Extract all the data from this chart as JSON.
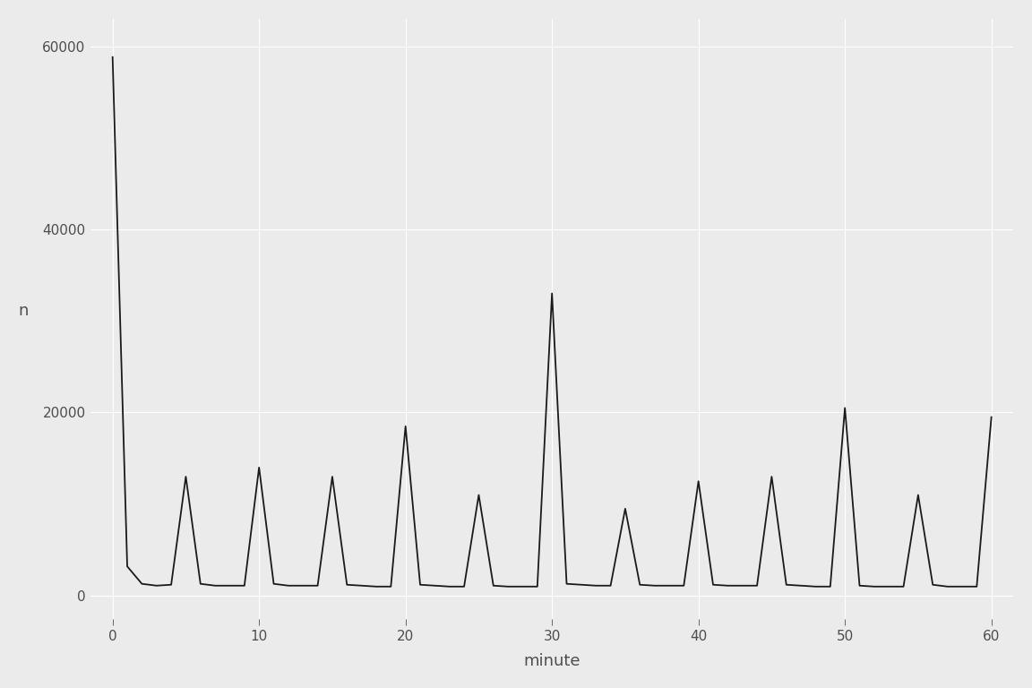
{
  "minutes": [
    0,
    1,
    2,
    3,
    4,
    5,
    6,
    7,
    8,
    9,
    10,
    11,
    12,
    13,
    14,
    15,
    16,
    17,
    18,
    19,
    20,
    21,
    22,
    23,
    24,
    25,
    26,
    27,
    28,
    29,
    30,
    31,
    32,
    33,
    34,
    35,
    36,
    37,
    38,
    39,
    40,
    41,
    42,
    43,
    44,
    45,
    46,
    47,
    48,
    49,
    50,
    51,
    52,
    53,
    54,
    55,
    56,
    57,
    58,
    59,
    60
  ],
  "flights": [
    58800,
    3200,
    1300,
    1100,
    1200,
    13000,
    1300,
    1100,
    1100,
    1100,
    14000,
    1300,
    1100,
    1100,
    1100,
    13000,
    1200,
    1100,
    1000,
    1000,
    18500,
    1200,
    1100,
    1000,
    1000,
    11000,
    1100,
    1000,
    1000,
    1000,
    33000,
    1300,
    1200,
    1100,
    1100,
    9500,
    1200,
    1100,
    1100,
    1100,
    12500,
    1200,
    1100,
    1100,
    1100,
    13000,
    1200,
    1100,
    1000,
    1000,
    20500,
    1100,
    1000,
    1000,
    1000,
    11000,
    1200,
    1000,
    1000,
    1000,
    19500
  ],
  "xlabel": "minute",
  "ylabel": "n",
  "xlim_low": -1.5,
  "xlim_high": 61.5,
  "ylim_low": -2500,
  "ylim_high": 63000,
  "xticks": [
    0,
    10,
    20,
    30,
    40,
    50,
    60
  ],
  "yticks": [
    0,
    20000,
    40000,
    60000
  ],
  "ytick_labels": [
    "0",
    "20000",
    "40000",
    "60000"
  ],
  "panel_bg": "#EBEBEB",
  "outer_bg": "#EBEBEB",
  "line_color": "#1A1A1A",
  "grid_color": "#FFFFFF",
  "text_color": "#4D4D4D",
  "tick_color": "#333333",
  "line_width": 1.3,
  "font_size_axis_label": 13,
  "font_size_tick": 11
}
